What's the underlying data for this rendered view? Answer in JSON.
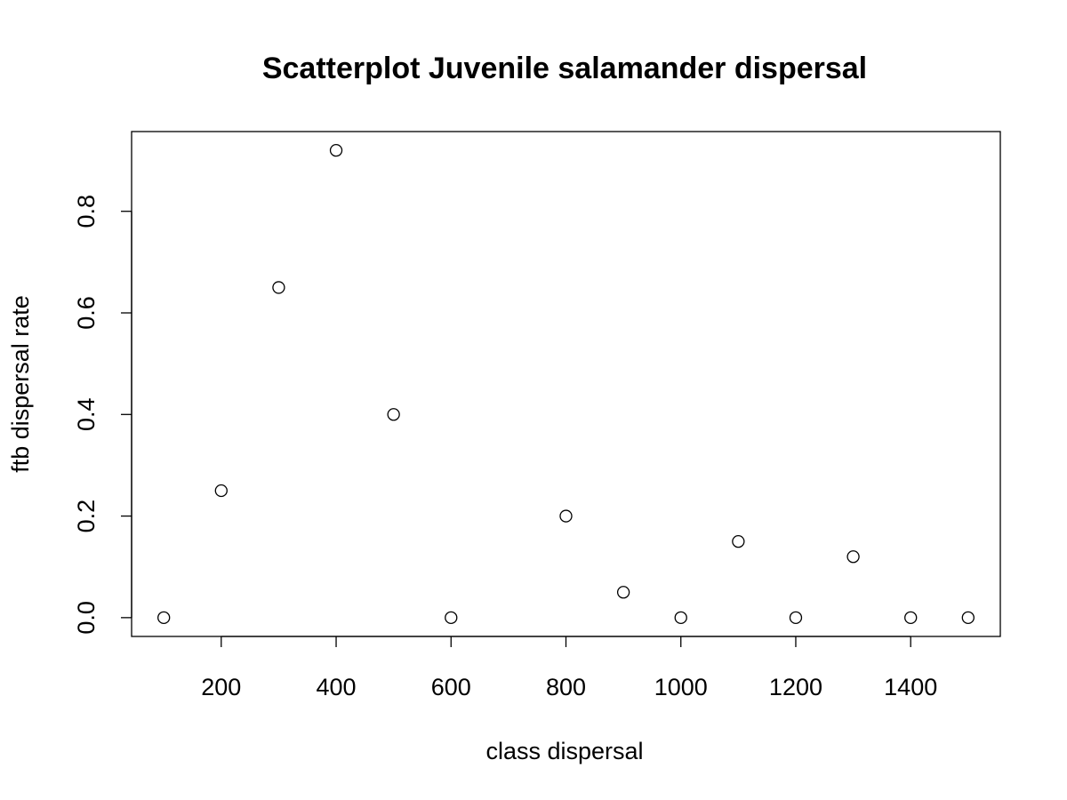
{
  "chart_data": {
    "type": "scatter",
    "title": "Scatterplot Juvenile salamander dispersal",
    "xlabel": "class dispersal",
    "ylabel": "ftb dispersal rate",
    "x_ticks": [
      200,
      400,
      600,
      800,
      1000,
      1200,
      1400
    ],
    "y_ticks": [
      0.0,
      0.2,
      0.4,
      0.6,
      0.8
    ],
    "y_tick_labels": [
      "0.0",
      "0.2",
      "0.4",
      "0.6",
      "0.8"
    ],
    "xlim": [
      44,
      1556
    ],
    "ylim": [
      -0.037,
      0.957
    ],
    "grid": false,
    "legend": "none",
    "marker": "open-circle",
    "marker_color": "#000000",
    "series": [
      {
        "x": [
          100,
          200,
          300,
          400,
          500,
          600,
          800,
          900,
          1000,
          1100,
          1200,
          1300,
          1400,
          1500
        ],
        "y": [
          0.0,
          0.25,
          0.65,
          0.92,
          0.4,
          0.0,
          0.2,
          0.05,
          0.0,
          0.15,
          0.0,
          0.12,
          0.0,
          0.0
        ]
      }
    ]
  }
}
